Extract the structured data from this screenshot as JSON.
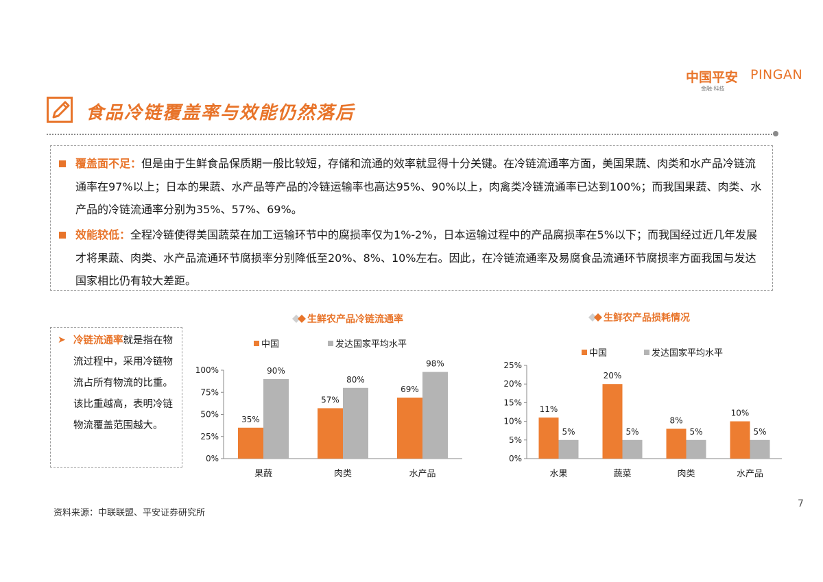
{
  "logo": {
    "cn": "中国平安",
    "en": "PINGAN",
    "sub": "金融·科技"
  },
  "title": "食品冷链覆盖率与效能仍然落后",
  "summary": {
    "b1_kw": "覆盖面不足：",
    "b1_text": "但是由于生鲜食品保质期一般比较短，存储和流通的效率就显得十分关键。在冷链流通率方面，美国果蔬、肉类和水产品冷链流通率在97%以上；日本的果蔬、水产品等产品的冷链运输率也高达95%、90%以上，肉禽类冷链流通率已达到100%；而我国果蔬、肉类、水产品的冷链流通率分别为35%、57%、69%。",
    "b2_kw": "效能较低：",
    "b2_text": "全程冷链使得美国蔬菜在加工运输环节中的腐损率仅为1%-2%，日本运输过程中的产品腐损率在5%以下；而我国经过近几年发展才将果蔬、肉类、水产品流通环节腐损率分别降低至20%、8%、10%左右。因此，在冷链流通率及易腐食品流通环节腐损率方面我国与发达国家相比仍有较大差距。"
  },
  "sidebar": {
    "kw": "冷链流通率",
    "text": "就是指在物流过程中，采用冷链物流占所有物流的比重。该比重越高，表明冷链物流覆盖范围越大。"
  },
  "colors": {
    "accent": "#E8742A",
    "china": "#ED7D31",
    "developed": "#B4B4B4"
  },
  "chart_data": [
    {
      "type": "bar",
      "title": "生鲜农产品冷链流通率",
      "categories": [
        "果蔬",
        "肉类",
        "水产品"
      ],
      "series": [
        {
          "name": "中国",
          "values": [
            35,
            57,
            69
          ],
          "labels": [
            "35%",
            "57%",
            "69%"
          ]
        },
        {
          "name": "发达国家平均水平",
          "values": [
            90,
            80,
            98
          ],
          "labels": [
            "90%",
            "80%",
            "98%"
          ]
        }
      ],
      "ylim": [
        0,
        100
      ],
      "yticks": [
        "0%",
        "25%",
        "50%",
        "75%",
        "100%"
      ],
      "xlabel": "",
      "ylabel": "",
      "grid": false,
      "legend": "top"
    },
    {
      "type": "bar",
      "title": "生鲜农产品损耗情况",
      "categories": [
        "水果",
        "蔬菜",
        "肉类",
        "水产品"
      ],
      "series": [
        {
          "name": "中国",
          "values": [
            11,
            20,
            8,
            10
          ],
          "labels": [
            "11%",
            "20%",
            "8%",
            "10%"
          ]
        },
        {
          "name": "发达国家平均水平",
          "values": [
            5,
            5,
            5,
            5
          ],
          "labels": [
            "5%",
            "5%",
            "5%",
            "5%"
          ]
        }
      ],
      "ylim": [
        0,
        25
      ],
      "yticks": [
        "0%",
        "5%",
        "10%",
        "15%",
        "20%",
        "25%"
      ],
      "xlabel": "",
      "ylabel": "",
      "grid": false,
      "legend": "top"
    }
  ],
  "source": "资料来源：中联联盟、平安证券研究所",
  "page_number": "7"
}
